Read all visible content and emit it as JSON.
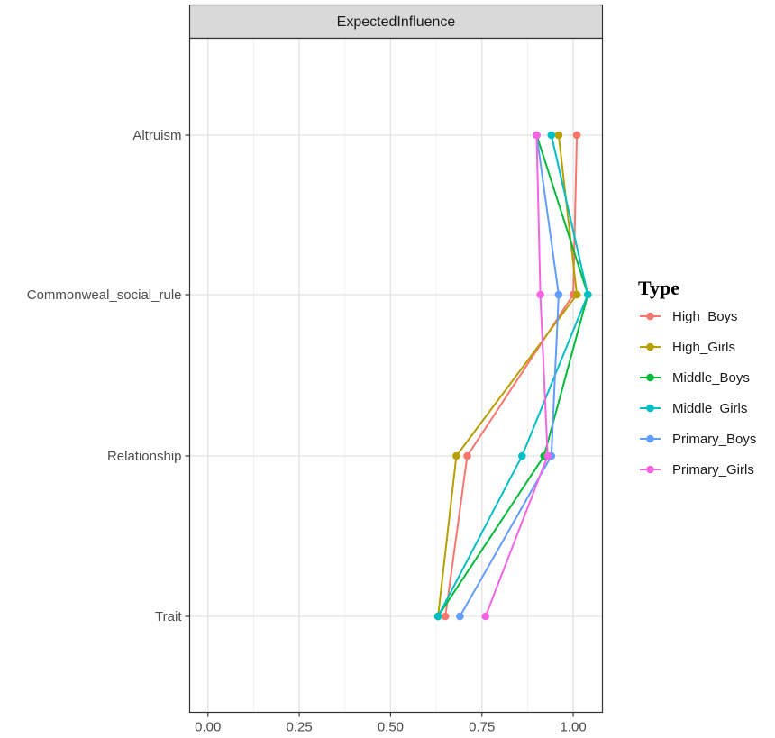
{
  "chart_data": {
    "type": "line",
    "facet_title": "ExpectedInfluence",
    "categories": [
      "Altruism",
      "Commonweal_social_rule",
      "Relationship",
      "Trait"
    ],
    "xlim": [
      -0.05,
      1.08
    ],
    "x_ticks": [
      0,
      0.25,
      0.5,
      0.75,
      1.0
    ],
    "x_tick_labels": [
      "0.00",
      "0.25",
      "0.50",
      "0.75",
      "1.00"
    ],
    "grid": true,
    "legend": {
      "title": "Type",
      "position": "right"
    },
    "series": [
      {
        "name": "High_Boys",
        "color": "#F8766D",
        "values": [
          1.01,
          1.0,
          0.71,
          0.65
        ]
      },
      {
        "name": "High_Girls",
        "color": "#B79F00",
        "values": [
          0.96,
          1.01,
          0.68,
          0.63
        ]
      },
      {
        "name": "Middle_Boys",
        "color": "#00BA38",
        "values": [
          0.9,
          1.04,
          0.92,
          0.63
        ]
      },
      {
        "name": "Middle_Girls",
        "color": "#00BFC4",
        "values": [
          0.94,
          1.04,
          0.86,
          0.63
        ]
      },
      {
        "name": "Primary_Boys",
        "color": "#619CFF",
        "values": [
          0.9,
          0.96,
          0.94,
          0.69
        ]
      },
      {
        "name": "Primary_Girls",
        "color": "#F564E3",
        "values": [
          0.9,
          0.91,
          0.93,
          0.76
        ]
      }
    ]
  }
}
